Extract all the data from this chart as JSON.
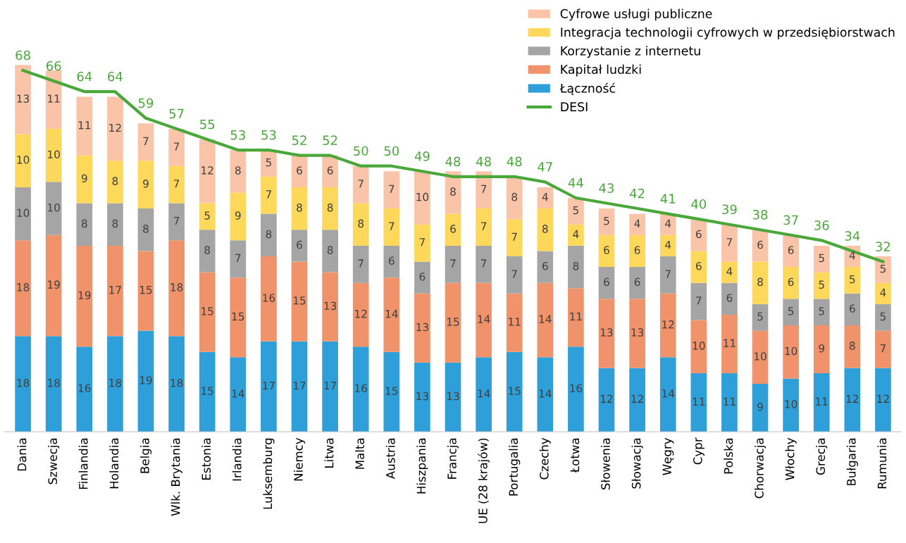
{
  "chart_data": {
    "type": "bar",
    "stacked": true,
    "data_labels": true,
    "legend": "top right",
    "grid": false,
    "categories": [
      "Dania",
      "Szwecja",
      "Finlandia",
      "Holandia",
      "Belgia",
      "Wlk. Brytania",
      "Estonia",
      "Irlandia",
      "Luksemburg",
      "Niemcy",
      "Litwa",
      "Malta",
      "Austria",
      "Hiszpania",
      "Francja",
      "UE (28 krajów)",
      "Portugalia",
      "Czechy",
      "Łotwa",
      "Słowenia",
      "Słowacja",
      "Węgry",
      "Cypr",
      "Polska",
      "Chorwacja",
      "Włochy",
      "Grecja",
      "Bułgaria",
      "Rumunia"
    ],
    "series": [
      {
        "name": "Łączność",
        "color": "#2e9fd9",
        "values": [
          18,
          18,
          16,
          18,
          19,
          18,
          15,
          14,
          17,
          17,
          17,
          16,
          15,
          13,
          13,
          14,
          15,
          14,
          16,
          12,
          12,
          14,
          11,
          11,
          9,
          10,
          11,
          12,
          12
        ]
      },
      {
        "name": "Kapitał ludzki",
        "color": "#f0926a",
        "values": [
          18,
          19,
          19,
          17,
          15,
          18,
          15,
          15,
          16,
          15,
          13,
          12,
          14,
          13,
          15,
          14,
          11,
          14,
          11,
          13,
          13,
          12,
          10,
          11,
          10,
          10,
          9,
          8,
          7
        ]
      },
      {
        "name": "Korzystanie z internetu",
        "color": "#a5a5a5",
        "values": [
          10,
          10,
          8,
          8,
          8,
          7,
          8,
          7,
          8,
          6,
          8,
          7,
          6,
          6,
          7,
          7,
          7,
          6,
          8,
          6,
          6,
          7,
          7,
          6,
          5,
          5,
          5,
          6,
          5
        ]
      },
      {
        "name": "Integracja technologii cyfrowych w przedsiębiorstwach",
        "color": "#fdd85a",
        "values": [
          10,
          10,
          9,
          8,
          9,
          7,
          5,
          9,
          7,
          8,
          8,
          8,
          7,
          7,
          6,
          7,
          7,
          8,
          4,
          6,
          6,
          4,
          6,
          4,
          8,
          6,
          5,
          5,
          4
        ]
      },
      {
        "name": "Cyfrowe usługi publiczne",
        "color": "#fac4a8",
        "values": [
          13,
          11,
          11,
          12,
          7,
          7,
          12,
          8,
          5,
          6,
          6,
          7,
          7,
          10,
          8,
          7,
          8,
          4,
          5,
          5,
          4,
          4,
          6,
          7,
          6,
          6,
          5,
          4,
          5
        ]
      },
      {
        "name": "DESI",
        "type": "line",
        "color": "#4aa83a",
        "values": [
          68,
          66,
          64,
          64,
          59,
          57,
          55,
          53,
          53,
          52,
          52,
          50,
          50,
          49,
          48,
          48,
          48,
          47,
          44,
          43,
          42,
          41,
          40,
          39,
          38,
          37,
          36,
          34,
          32
        ]
      }
    ]
  }
}
